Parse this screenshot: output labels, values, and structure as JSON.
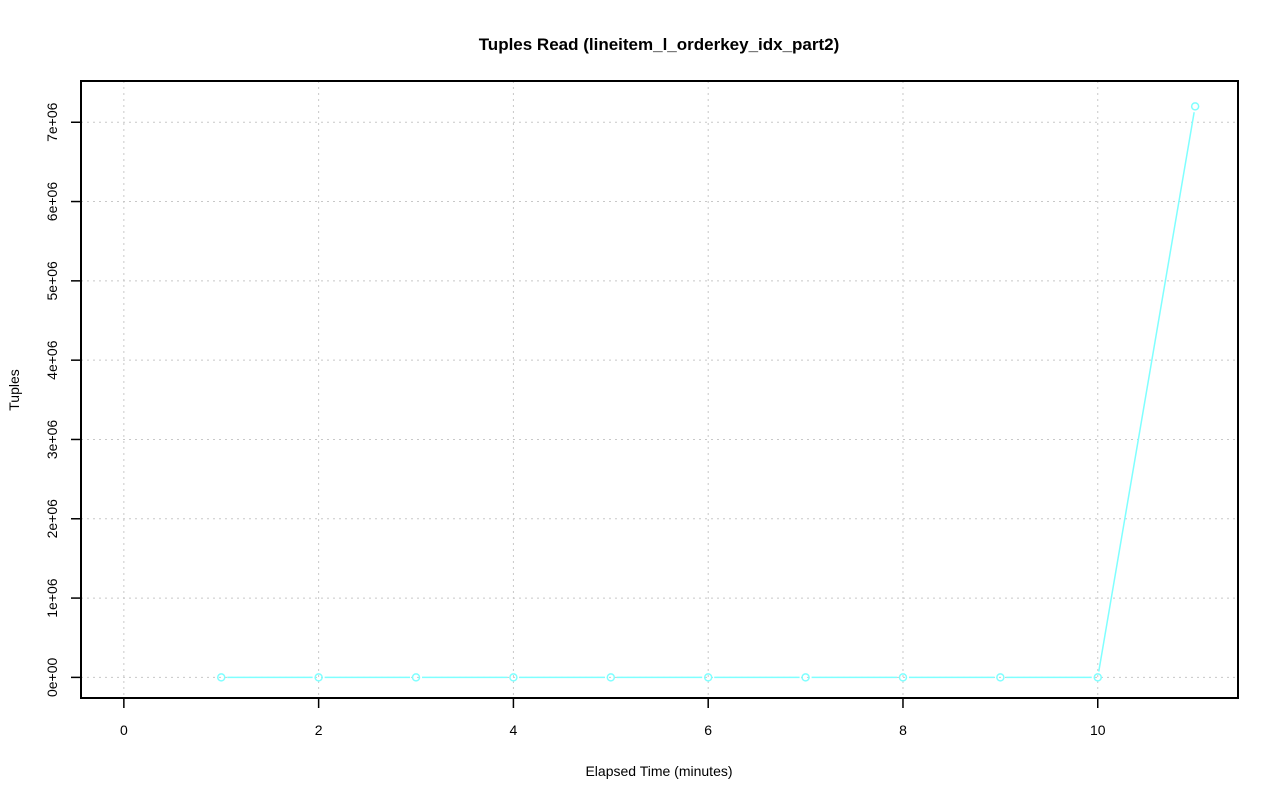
{
  "chart_data": {
    "type": "line",
    "title": "Tuples Read (lineitem_l_orderkey_idx_part2)",
    "xlabel": "Elapsed Time (minutes)",
    "ylabel": "Tuples",
    "xlim": [
      -0.44,
      11.44
    ],
    "ylim": [
      -260000,
      7520000
    ],
    "x_ticks": [
      0,
      2,
      4,
      6,
      8,
      10
    ],
    "x_tick_labels": [
      "0",
      "2",
      "4",
      "6",
      "8",
      "10"
    ],
    "y_ticks": [
      0,
      1000000,
      2000000,
      3000000,
      4000000,
      5000000,
      6000000,
      7000000
    ],
    "y_tick_labels": [
      "0e+00",
      "1e+06",
      "2e+06",
      "3e+06",
      "4e+06",
      "5e+06",
      "6e+06",
      "7e+06"
    ],
    "grid": true,
    "series": [
      {
        "color": "#7fffff",
        "marker": "open-circle",
        "x": [
          1,
          2,
          3,
          4,
          5,
          6,
          7,
          8,
          9,
          10,
          11
        ],
        "y": [
          0,
          0,
          0,
          0,
          0,
          0,
          0,
          0,
          0,
          0,
          7200000
        ]
      }
    ]
  }
}
